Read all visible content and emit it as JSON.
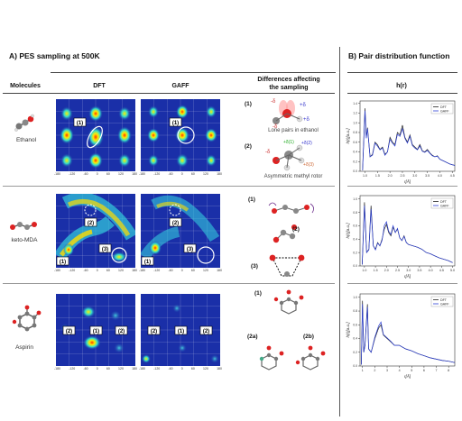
{
  "panelA": {
    "title": "A) PES sampling at 500K",
    "col_molecules": "Molecules",
    "col_dft": "DFT",
    "col_gaff": "GAFF",
    "col_diff_line1": "Differences affecting",
    "col_diff_line2": "the sampling"
  },
  "panelB": {
    "title": "B) Pair distribution function",
    "col_h": "h(r)"
  },
  "rows": [
    {
      "molecule": "Ethanol",
      "dft_labels": [
        "(1)"
      ],
      "gaff_labels": [
        "(1)"
      ],
      "diff": [
        {
          "num": "(1)",
          "text": "Lone pairs in ethanol"
        },
        {
          "num": "(2)",
          "text": "Asymmetric methyl rotor"
        }
      ]
    },
    {
      "molecule": "keto-MDA",
      "dft_labels": [
        "(1)",
        "(2)",
        "(3)"
      ],
      "gaff_labels": [
        "(1)",
        "(2)",
        "(3)"
      ],
      "diff": [
        {
          "num": "(1)",
          "text": ""
        },
        {
          "num": "(2)",
          "text": ""
        },
        {
          "num": "(3)",
          "text": ""
        }
      ]
    },
    {
      "molecule": "Aspirin",
      "dft_labels": [
        "(2)",
        "(1)",
        "(2)"
      ],
      "gaff_labels": [
        "(2)",
        "(1)",
        "(2)"
      ],
      "diff": [
        {
          "num": "(1)",
          "text": ""
        },
        {
          "num": "(2a)",
          "text": ""
        },
        {
          "num": "(2b)",
          "text": ""
        }
      ]
    }
  ],
  "heatmap_ticks": [
    "-180",
    "-120",
    "-60",
    "0",
    "60",
    "120",
    "180"
  ],
  "charge_labels": {
    "minus_delta": "-δ",
    "plus_delta": "+δ",
    "plus_delta_1": "+δ(1)",
    "plus_delta_2": "+δ(2)",
    "plus_delta_3": "+δ(3)"
  },
  "chart_data": [
    {
      "type": "line",
      "ylabel": "h(r)[a.u.]",
      "xlabel": "r[Å]",
      "legend": [
        "DFT",
        "GAFF"
      ],
      "legend_position": "top-right",
      "xticks": [
        "1.0",
        "1.5",
        "2.0",
        "2.5",
        "3.0",
        "3.5",
        "4.0",
        "4.5"
      ],
      "yticks": [
        "0.0",
        "0.2",
        "0.4",
        "0.6",
        "0.8",
        "1.0",
        "1.2",
        "1.4"
      ],
      "xlim": [
        0.8,
        4.6
      ],
      "ylim": [
        0,
        1.45
      ],
      "series": [
        {
          "name": "DFT",
          "x": [
            0.9,
            1.0,
            1.05,
            1.1,
            1.2,
            1.3,
            1.4,
            1.5,
            1.6,
            1.7,
            1.8,
            1.9,
            2.0,
            2.1,
            2.2,
            2.3,
            2.4,
            2.5,
            2.6,
            2.7,
            2.8,
            2.9,
            3.0,
            3.1,
            3.2,
            3.3,
            3.4,
            3.5,
            3.6,
            3.7,
            3.8,
            3.9,
            4.0,
            4.2,
            4.4,
            4.6
          ],
          "y": [
            0.02,
            1.3,
            0.7,
            0.9,
            0.3,
            0.35,
            0.6,
            0.55,
            0.45,
            0.5,
            0.35,
            0.4,
            0.7,
            0.6,
            0.55,
            0.8,
            0.75,
            0.95,
            0.7,
            0.6,
            0.75,
            0.55,
            0.5,
            0.45,
            0.55,
            0.42,
            0.4,
            0.45,
            0.38,
            0.33,
            0.3,
            0.32,
            0.25,
            0.2,
            0.15,
            0.12
          ]
        },
        {
          "name": "GAFF",
          "x": [
            0.9,
            1.0,
            1.05,
            1.1,
            1.2,
            1.3,
            1.4,
            1.5,
            1.6,
            1.7,
            1.8,
            1.9,
            2.0,
            2.1,
            2.2,
            2.3,
            2.4,
            2.5,
            2.6,
            2.7,
            2.8,
            2.9,
            3.0,
            3.1,
            3.2,
            3.3,
            3.4,
            3.5,
            3.6,
            3.7,
            3.8,
            3.9,
            4.0,
            4.2,
            4.4,
            4.6
          ],
          "y": [
            0.02,
            1.25,
            0.68,
            0.88,
            0.3,
            0.33,
            0.58,
            0.52,
            0.44,
            0.48,
            0.33,
            0.4,
            0.66,
            0.58,
            0.52,
            0.76,
            0.72,
            0.88,
            0.68,
            0.58,
            0.72,
            0.53,
            0.48,
            0.44,
            0.52,
            0.41,
            0.39,
            0.43,
            0.37,
            0.32,
            0.3,
            0.31,
            0.25,
            0.2,
            0.15,
            0.12
          ]
        }
      ]
    },
    {
      "type": "line",
      "ylabel": "h(r)[a.u.]",
      "xlabel": "r[Å]",
      "legend": [
        "DFT",
        "GAFF"
      ],
      "legend_position": "top-right",
      "xticks": [
        "1.0",
        "1.5",
        "2.0",
        "2.5",
        "3.0",
        "3.5",
        "4.0",
        "4.5",
        "5.0"
      ],
      "yticks": [
        "0.0",
        "0.2",
        "0.4",
        "0.6",
        "0.8",
        "1.0"
      ],
      "xlim": [
        0.8,
        5.1
      ],
      "ylim": [
        0,
        1.05
      ],
      "series": [
        {
          "name": "DFT",
          "x": [
            0.9,
            1.0,
            1.1,
            1.2,
            1.3,
            1.4,
            1.5,
            1.6,
            1.7,
            1.8,
            1.9,
            2.0,
            2.1,
            2.2,
            2.3,
            2.4,
            2.5,
            2.6,
            2.7,
            2.8,
            2.9,
            3.0,
            3.2,
            3.4,
            3.6,
            3.8,
            4.0,
            4.2,
            4.4,
            4.6,
            4.8,
            5.0
          ],
          "y": [
            0.02,
            0.95,
            0.2,
            0.25,
            0.9,
            0.3,
            0.25,
            0.35,
            0.3,
            0.4,
            0.55,
            0.62,
            0.5,
            0.45,
            0.58,
            0.5,
            0.55,
            0.42,
            0.38,
            0.45,
            0.35,
            0.32,
            0.3,
            0.28,
            0.25,
            0.2,
            0.18,
            0.15,
            0.12,
            0.1,
            0.08,
            0.05
          ]
        },
        {
          "name": "GAFF",
          "x": [
            0.9,
            1.0,
            1.1,
            1.2,
            1.3,
            1.4,
            1.5,
            1.6,
            1.7,
            1.8,
            1.9,
            2.0,
            2.1,
            2.2,
            2.3,
            2.4,
            2.5,
            2.6,
            2.7,
            2.8,
            2.9,
            3.0,
            3.2,
            3.4,
            3.6,
            3.8,
            4.0,
            4.2,
            4.4,
            4.6,
            4.8,
            5.0
          ],
          "y": [
            0.02,
            0.9,
            0.2,
            0.24,
            0.85,
            0.3,
            0.24,
            0.34,
            0.3,
            0.38,
            0.6,
            0.66,
            0.52,
            0.47,
            0.6,
            0.5,
            0.56,
            0.42,
            0.38,
            0.44,
            0.35,
            0.32,
            0.3,
            0.28,
            0.25,
            0.2,
            0.18,
            0.15,
            0.12,
            0.1,
            0.08,
            0.05
          ]
        }
      ]
    },
    {
      "type": "line",
      "ylabel": "h(r)[a.u.]",
      "xlabel": "r[Å]",
      "legend": [
        "DFT",
        "GAFF"
      ],
      "legend_position": "top-right",
      "xticks": [
        "1",
        "2",
        "3",
        "4",
        "5",
        "6",
        "7",
        "8"
      ],
      "yticks": [
        "0.0",
        "0.2",
        "0.4",
        "0.6",
        "0.8",
        "1.0"
      ],
      "xlim": [
        0.8,
        8.5
      ],
      "ylim": [
        0,
        1.05
      ],
      "series": [
        {
          "name": "DFT",
          "x": [
            0.9,
            1.0,
            1.1,
            1.2,
            1.4,
            1.5,
            1.7,
            2.0,
            2.3,
            2.5,
            2.7,
            3.0,
            3.3,
            3.6,
            4.0,
            4.5,
            5.0,
            5.5,
            6.0,
            6.5,
            7.0,
            7.5,
            8.0,
            8.5
          ],
          "y": [
            0.02,
            0.95,
            0.2,
            0.3,
            0.9,
            0.25,
            0.2,
            0.4,
            0.55,
            0.6,
            0.45,
            0.4,
            0.35,
            0.3,
            0.3,
            0.25,
            0.22,
            0.18,
            0.15,
            0.12,
            0.1,
            0.08,
            0.07,
            0.05
          ]
        },
        {
          "name": "GAFF",
          "x": [
            0.9,
            1.0,
            1.1,
            1.2,
            1.4,
            1.5,
            1.7,
            2.0,
            2.3,
            2.5,
            2.7,
            3.0,
            3.3,
            3.6,
            4.0,
            4.5,
            5.0,
            5.5,
            6.0,
            6.5,
            7.0,
            7.5,
            8.0,
            8.5
          ],
          "y": [
            0.02,
            0.9,
            0.2,
            0.3,
            0.86,
            0.25,
            0.2,
            0.42,
            0.58,
            0.64,
            0.46,
            0.41,
            0.36,
            0.3,
            0.3,
            0.25,
            0.22,
            0.18,
            0.15,
            0.12,
            0.1,
            0.08,
            0.07,
            0.05
          ]
        }
      ]
    }
  ]
}
